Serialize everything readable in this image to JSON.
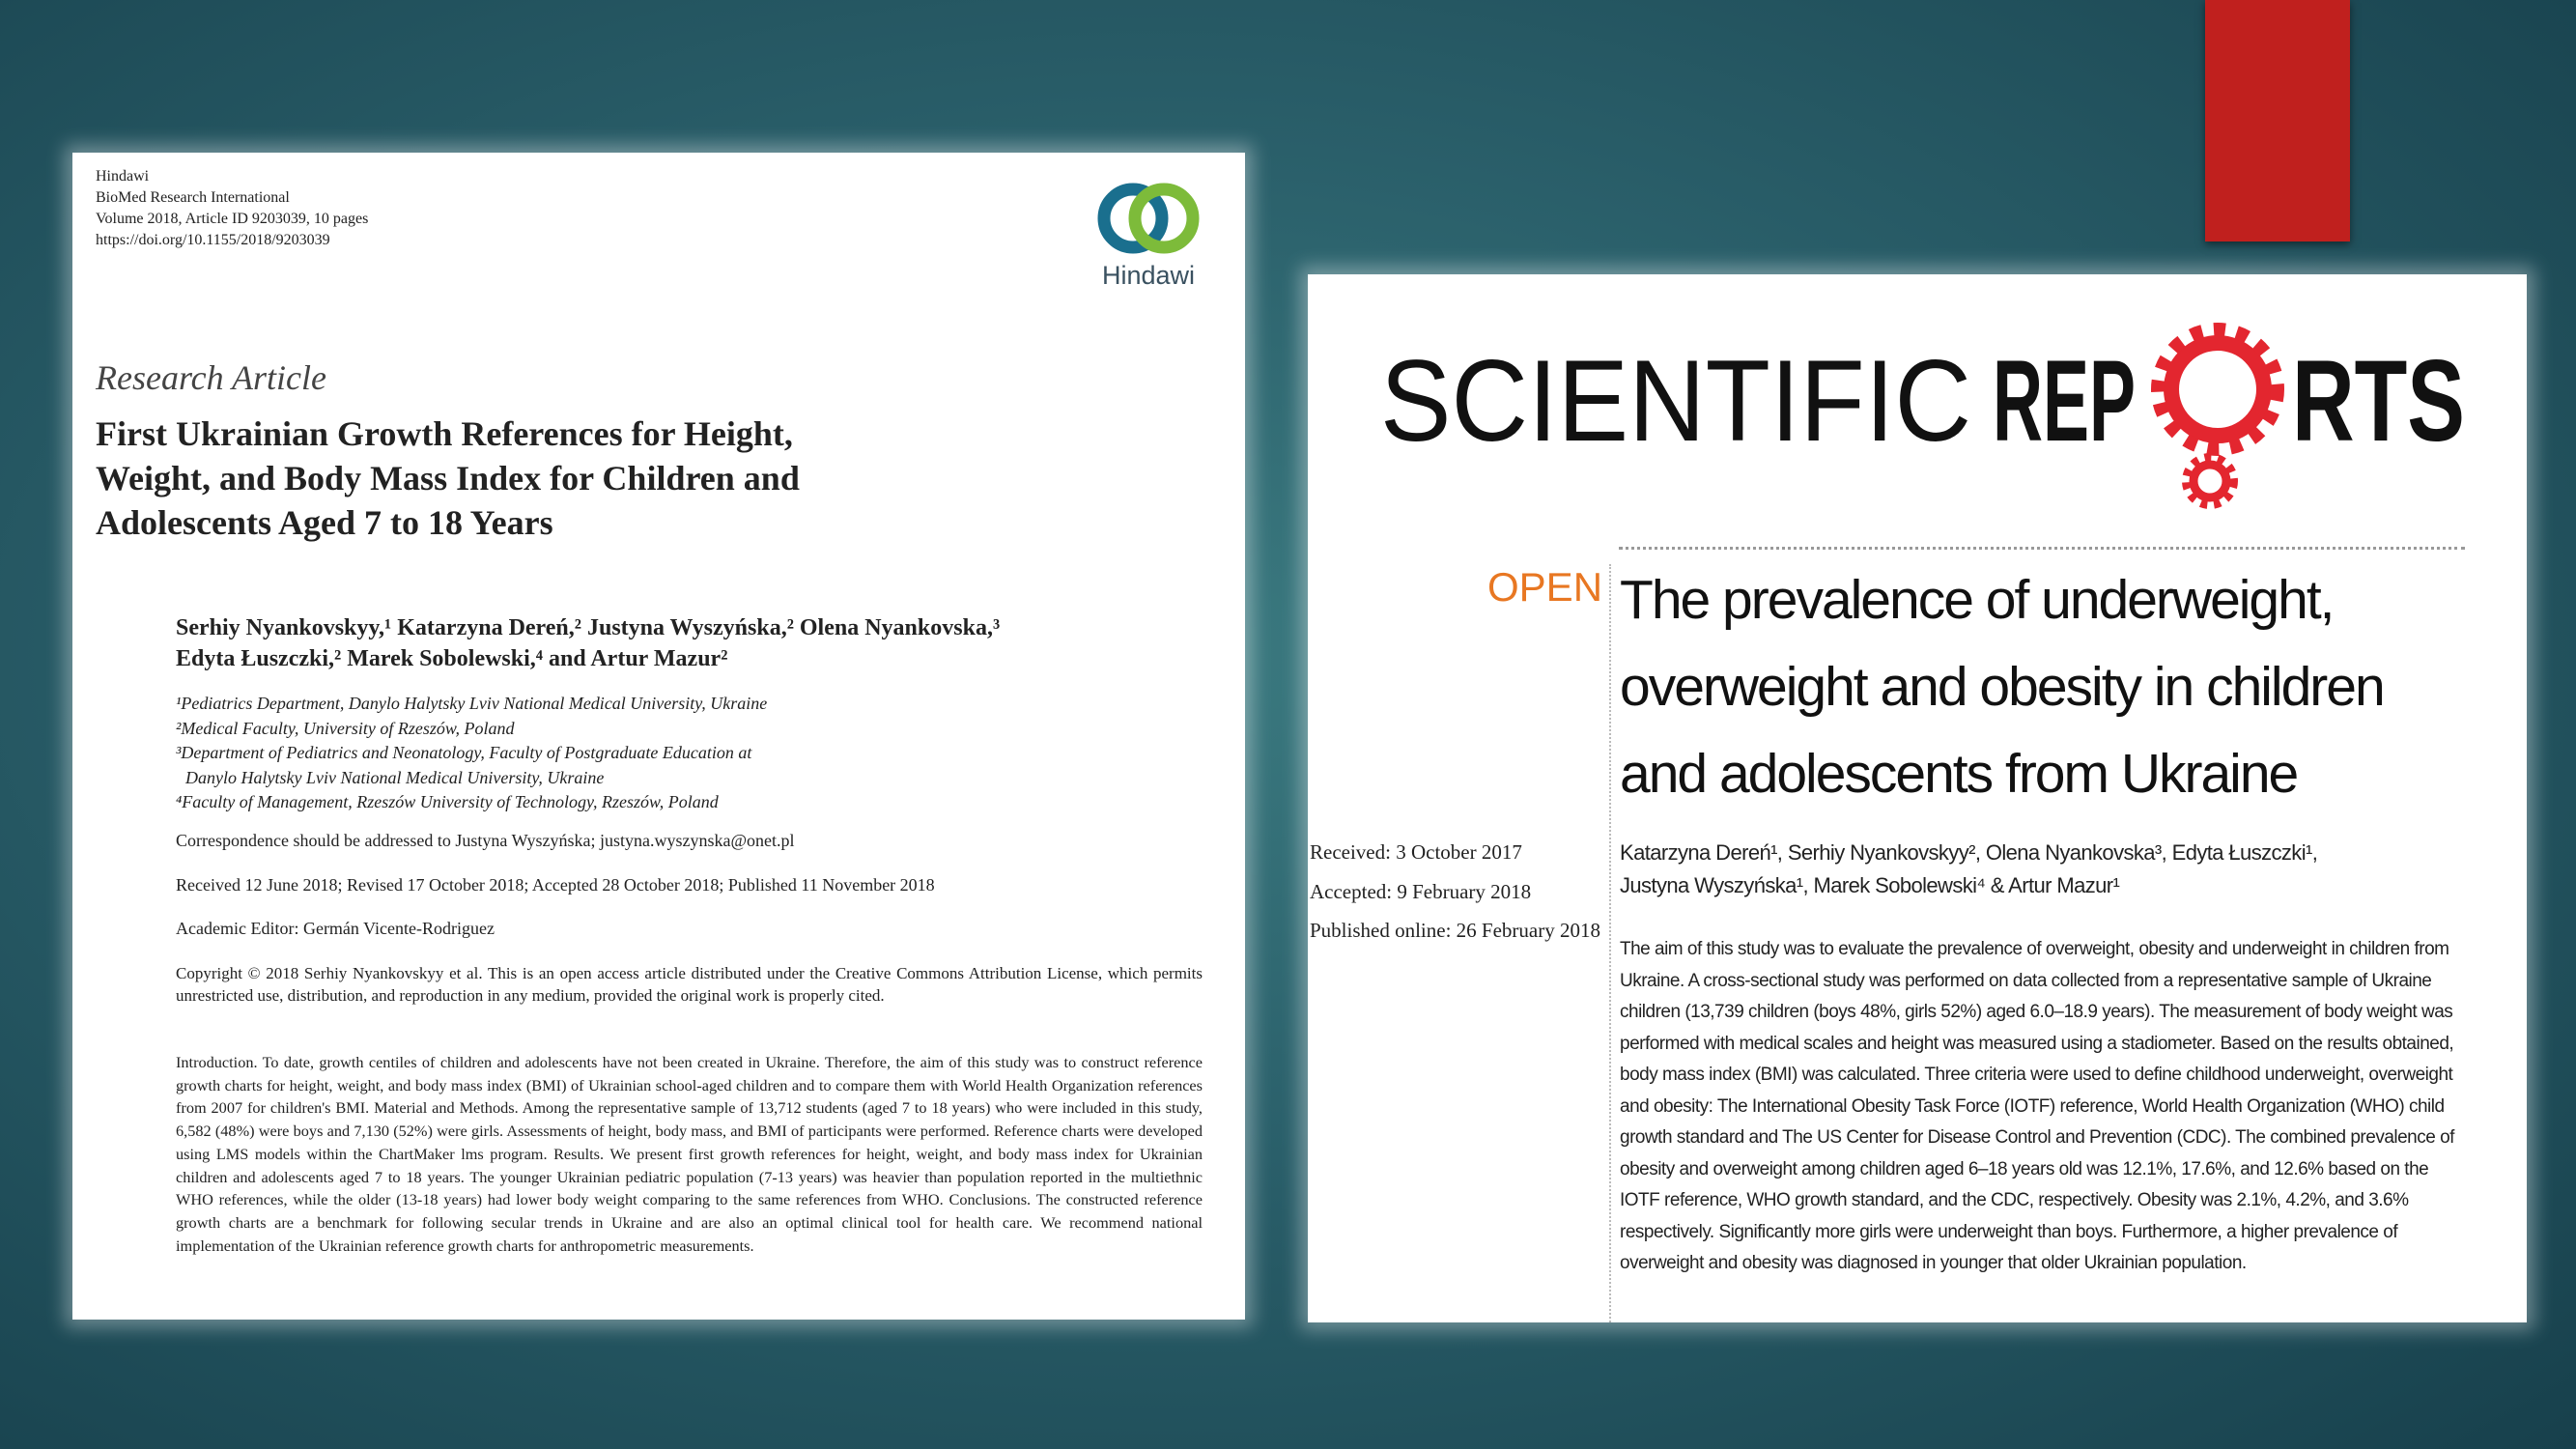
{
  "left_article": {
    "header": [
      "Hindawi",
      "BioMed Research International",
      "Volume 2018, Article ID 9203039, 10 pages",
      "https://doi.org/10.1155/2018/9203039"
    ],
    "logo": "Hindawi",
    "article_type": "Research Article",
    "title": [
      "First Ukrainian Growth References for Height,",
      "Weight, and Body Mass Index for Children and",
      "Adolescents Aged 7 to 18 Years"
    ],
    "authors": [
      "Serhiy Nyankovskyy,¹ Katarzyna Dereń,² Justyna Wyszyńska,² Olena Nyankovska,³",
      "Edyta Łuszczki,² Marek Sobolewski,⁴ and Artur Mazur²"
    ],
    "affiliations": [
      "¹Pediatrics Department, Danylo Halytsky Lviv National Medical University, Ukraine",
      "²Medical Faculty, University of Rzeszów, Poland",
      "³Department of Pediatrics and Neonatology, Faculty of Postgraduate Education at",
      "Danylo Halytsky Lviv National Medical University, Ukraine",
      "⁴Faculty of Management, Rzeszów University of Technology, Rzeszów, Poland"
    ],
    "correspondence": "Correspondence should be addressed to Justyna Wyszyńska; justyna.wyszynska@onet.pl",
    "dates": "Received 12 June 2018; Revised 17 October 2018; Accepted 28 October 2018; Published 11 November 2018",
    "editor": "Academic Editor: Germán Vicente-Rodriguez",
    "copyright": "Copyright © 2018 Serhiy Nyankovskyy et al. This is an open access article distributed under the Creative Commons Attribution License, which permits unrestricted use, distribution, and reproduction in any medium, provided the original work is properly cited.",
    "abstract": "Introduction. To date, growth centiles of children and adolescents have not been created in Ukraine. Therefore, the aim of this study was to construct reference growth charts for height, weight, and body mass index (BMI) of Ukrainian school-aged children and to compare them with World Health Organization references from 2007 for children's BMI. Material and Methods. Among the representative sample of 13,712 students (aged 7 to 18 years) who were included in this study, 6,582 (48%) were boys and 7,130 (52%) were girls. Assessments of height, body mass, and BMI of participants were performed. Reference charts were developed using LMS models within the ChartMaker lms program. Results. We present first growth references for height, weight, and body mass index for Ukrainian children and adolescents aged 7 to 18 years. The younger Ukrainian pediatric population (7-13 years) was heavier than population reported in the multiethnic WHO references, while the older (13-18 years) had lower body weight comparing to the same references from WHO. Conclusions. The constructed reference growth charts are a benchmark for following secular trends in Ukraine and are also an optimal clinical tool for health care. We recommend national implementation of the Ukrainian reference growth charts for anthropometric measurements."
  },
  "right_article": {
    "logo": [
      "SCIENTIFIC",
      "REP",
      "RTS"
    ],
    "open": "OPEN",
    "title": [
      "The prevalence of underweight,",
      "overweight and obesity in children",
      "and adolescents from Ukraine"
    ],
    "dates": [
      "Received: 3 October 2017",
      "Accepted: 9 February 2018",
      "Published online: 26 February 2018"
    ],
    "authors": [
      "Katarzyna Dereń¹, Serhiy Nyankovskyy², Olena Nyankovska³, Edyta Łuszczki¹,",
      "Justyna Wyszyńska¹, Marek Sobolewski⁴ & Artur Mazur¹"
    ],
    "abstract": "The aim of this study was to evaluate the prevalence of overweight, obesity and underweight in children from Ukraine. A cross-sectional study was performed on data collected from a representative sample of Ukraine children (13,739 children (boys 48%, girls 52%) aged 6.0–18.9 years). The measurement of body weight was performed with medical scales and height was measured using a stadiometer. Based on the results obtained, body mass index (BMI) was calculated. Three criteria were used to define childhood underweight, overweight and obesity: The International Obesity Task Force (IOTF) reference, World Health Organization (WHO) child growth standard and The US Center for Disease Control and Prevention (CDC). The combined prevalence of obesity and overweight among children aged 6–18 years old was 12.1%, 17.6%, and 12.6% based on the IOTF reference, WHO growth standard, and the CDC, respectively. Obesity was 2.1%, 4.2%, and 3.6% respectively. Significantly more girls were underweight than boys. Furthermore, a higher prevalence of overweight and obesity was diagnosed in younger that older Ukrainian population."
  }
}
